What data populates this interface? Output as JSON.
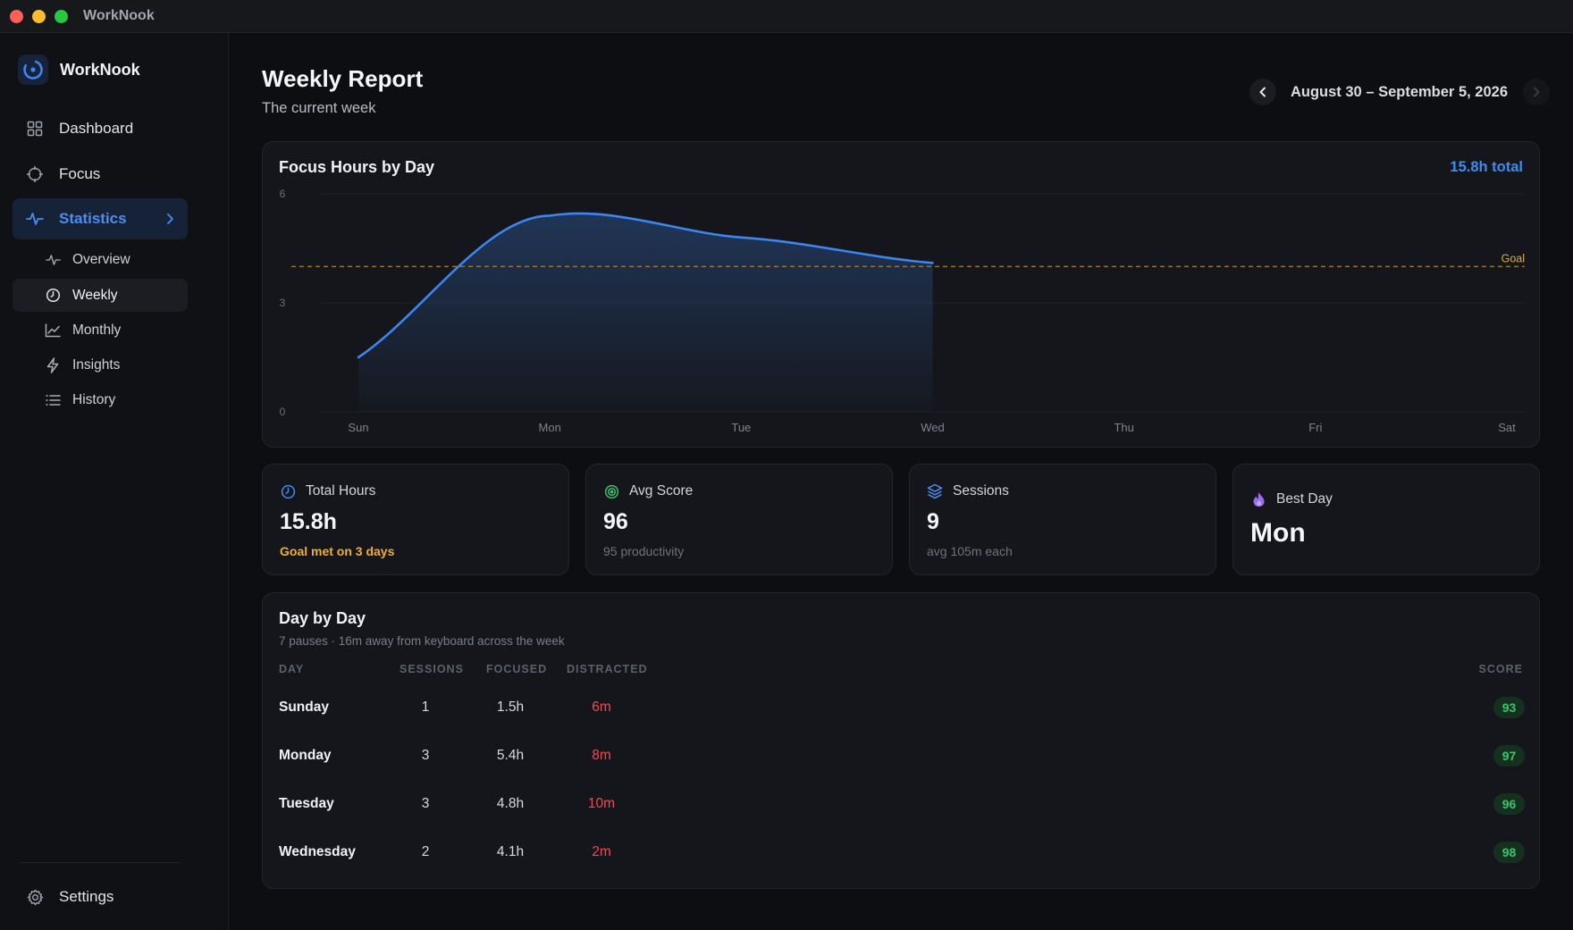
{
  "window": {
    "title": "WorkNook"
  },
  "sidebar": {
    "brand": "WorkNook",
    "nav": [
      {
        "label": "Dashboard",
        "icon": "grid-icon"
      },
      {
        "label": "Focus",
        "icon": "crosshair-icon"
      },
      {
        "label": "Statistics",
        "icon": "pulse-icon",
        "active": true
      }
    ],
    "sub": [
      {
        "label": "Overview",
        "icon": "pulse-icon"
      },
      {
        "label": "Weekly",
        "icon": "clock-icon",
        "active": true
      },
      {
        "label": "Monthly",
        "icon": "line-chart-icon"
      },
      {
        "label": "Insights",
        "icon": "bolt-icon"
      },
      {
        "label": "History",
        "icon": "list-icon"
      }
    ],
    "settings": "Settings"
  },
  "header": {
    "title": "Weekly Report",
    "subtitle": "The current week",
    "date_range": "August 30 – September 5, 2026"
  },
  "chart_card": {
    "title": "Focus Hours by Day",
    "total": "15.8h total"
  },
  "chart_data": {
    "type": "area",
    "title": "Focus Hours by Day",
    "categories": [
      "Sun",
      "Mon",
      "Tue",
      "Wed",
      "Thu",
      "Fri",
      "Sat"
    ],
    "series": [
      {
        "values": [
          1.5,
          5.4,
          4.8,
          4.1,
          null,
          null,
          null
        ]
      }
    ],
    "yticks": [
      0,
      3,
      6
    ],
    "ylim": [
      0,
      6
    ],
    "goal": {
      "label": "Goal",
      "value": 4
    },
    "colors": {
      "line": "#3d86f0",
      "goal": "#9a7a22"
    },
    "grid": true
  },
  "stats": [
    {
      "label": "Total Hours",
      "icon": "clock-icon",
      "value": "15.8h",
      "note": "Goal met on 3 days",
      "color": "#3d8cf0"
    },
    {
      "label": "Avg Score",
      "icon": "target-icon",
      "value": "96",
      "note": "95 productivity",
      "color": "#34c06d"
    },
    {
      "label": "Sessions",
      "icon": "layers-icon",
      "value": "9",
      "note": "avg 105m each",
      "color": "#4a8ff0"
    },
    {
      "label": "Best Day",
      "icon": "flame-icon",
      "value": "Mon",
      "color": "#9a6cf0"
    }
  ],
  "table": {
    "title": "Day by Day",
    "subtitle": "7 pauses · 16m away from keyboard across the week",
    "headers": {
      "day": "DAY",
      "sessions": "SESSIONS",
      "focused": "FOCUSED",
      "distracted": "DISTRACTED",
      "score": "SCORE"
    },
    "rows": [
      {
        "day": "Sunday",
        "sessions": "1",
        "focused": "1.5h",
        "distracted": "6m",
        "score": "93"
      },
      {
        "day": "Monday",
        "sessions": "3",
        "focused": "5.4h",
        "distracted": "8m",
        "score": "97"
      },
      {
        "day": "Tuesday",
        "sessions": "3",
        "focused": "4.8h",
        "distracted": "10m",
        "score": "96"
      },
      {
        "day": "Wednesday",
        "sessions": "2",
        "focused": "4.1h",
        "distracted": "2m",
        "score": "98"
      }
    ]
  }
}
